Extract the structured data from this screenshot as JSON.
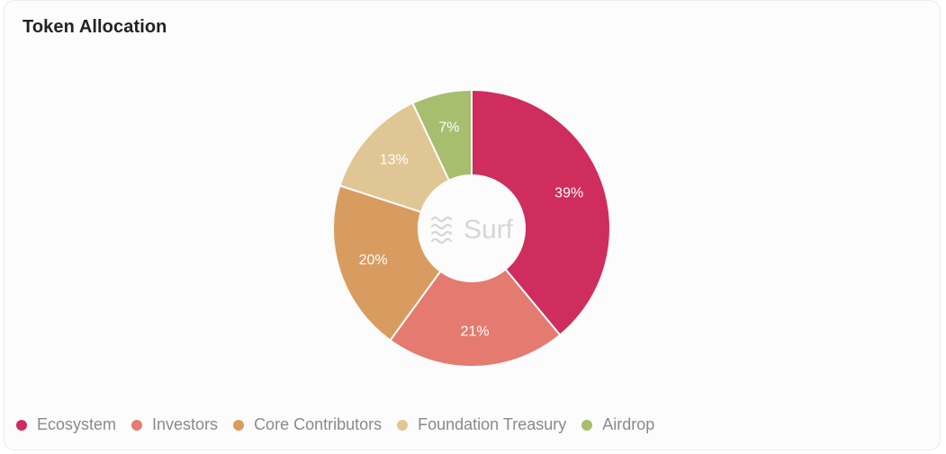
{
  "card": {
    "title": "Token Allocation"
  },
  "watermark": {
    "text": "Surf",
    "icon": "surf-waves-icon"
  },
  "chart_data": {
    "type": "pie",
    "title": "Token Allocation",
    "donut": true,
    "legend_position": "bottom-left",
    "slices": [
      {
        "name": "Ecosystem",
        "value": 39,
        "label": "39%",
        "color": "#cf2d5d"
      },
      {
        "name": "Investors",
        "value": 21,
        "label": "21%",
        "color": "#e57a70"
      },
      {
        "name": "Core Contributors",
        "value": 20,
        "label": "20%",
        "color": "#d99c60"
      },
      {
        "name": "Foundation Treasury",
        "value": 13,
        "label": "13%",
        "color": "#e0c694"
      },
      {
        "name": "Airdrop",
        "value": 7,
        "label": "7%",
        "color": "#a6be6e"
      }
    ]
  }
}
